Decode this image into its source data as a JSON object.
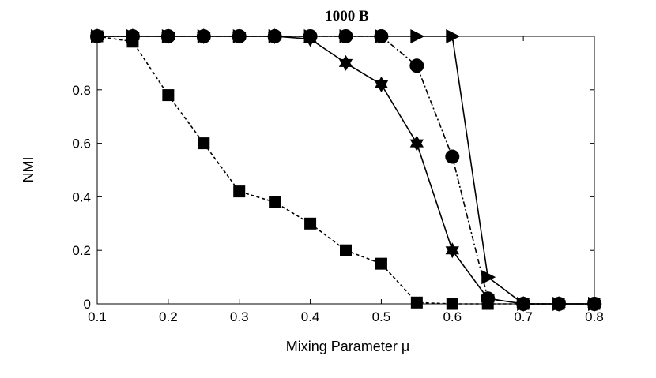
{
  "chart_data": {
    "type": "line",
    "title": "1000 B",
    "xlabel": "Mixing Parameter μ",
    "ylabel": "NMI",
    "xlim": [
      0.1,
      0.8
    ],
    "ylim": [
      0,
      1
    ],
    "x_ticks": [
      "0.1",
      "0.2",
      "0.3",
      "0.4",
      "0.5",
      "0.6",
      "0.7",
      "0.8"
    ],
    "y_ticks": [
      "0",
      "0.2",
      "0.4",
      "0.6",
      "0.8"
    ],
    "grid": false,
    "colors": {
      "series": "#000000",
      "background": "#ffffff"
    },
    "x": [
      0.1,
      0.15,
      0.2,
      0.25,
      0.3,
      0.35,
      0.4,
      0.45,
      0.5,
      0.55,
      0.6,
      0.65,
      0.7,
      0.75,
      0.8
    ],
    "series": [
      {
        "marker": "square",
        "line_style": "dashed",
        "values": [
          1.0,
          0.98,
          0.78,
          0.6,
          0.42,
          0.38,
          0.3,
          0.2,
          0.15,
          0.005,
          0.0,
          0.0,
          0.0,
          0.0,
          0.0
        ]
      },
      {
        "marker": "hexagram",
        "line_style": "solid",
        "values": [
          1.0,
          1.0,
          1.0,
          1.0,
          1.0,
          1.0,
          0.99,
          0.9,
          0.82,
          0.6,
          0.2,
          0.02,
          0.0,
          0.0,
          0.0
        ]
      },
      {
        "marker": "circle",
        "line_style": "dashdot",
        "values": [
          1.0,
          1.0,
          1.0,
          1.0,
          1.0,
          1.0,
          1.0,
          1.0,
          1.0,
          0.89,
          0.55,
          0.02,
          0.0,
          0.0,
          0.0
        ]
      },
      {
        "marker": "triangle-right",
        "line_style": "solid",
        "values": [
          1.0,
          1.0,
          1.0,
          1.0,
          1.0,
          1.0,
          1.0,
          1.0,
          1.0,
          1.0,
          1.0,
          0.1,
          0.0,
          0.0,
          0.0
        ]
      }
    ]
  }
}
